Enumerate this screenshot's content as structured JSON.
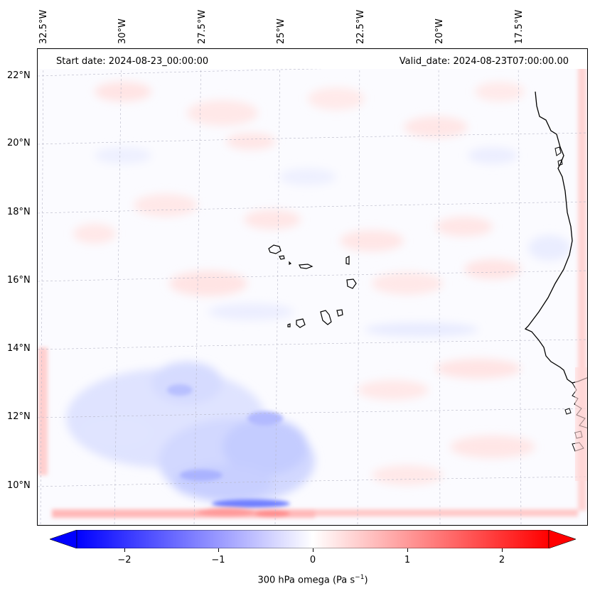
{
  "header": {
    "start_date": "Start date: 2024-08-23_00:00:00",
    "valid_date": "Valid_date: 2024-08-23T07:00:00.00"
  },
  "longitude_labels": [
    "32.5°W",
    "30°W",
    "27.5°W",
    "25°W",
    "22.5°W",
    "20°W",
    "17.5°W"
  ],
  "latitude_labels": [
    "22°N",
    "20°N",
    "18°N",
    "16°N",
    "14°N",
    "12°N",
    "10°N"
  ],
  "colorbar": {
    "ticks": [
      "−2",
      "−1",
      "0",
      "1",
      "2"
    ],
    "title": "300 hPa omega (Pa s",
    "title_sup": "−1",
    "title_end": ")",
    "range": [
      -2.5,
      2.5
    ],
    "colors": {
      "negative": "#0000ff",
      "zero": "#ffffff",
      "positive": "#ff0000"
    }
  },
  "map_features": {
    "field": "300 hPa omega",
    "region": "Cape Verde islands and West African coast",
    "grid": true
  }
}
